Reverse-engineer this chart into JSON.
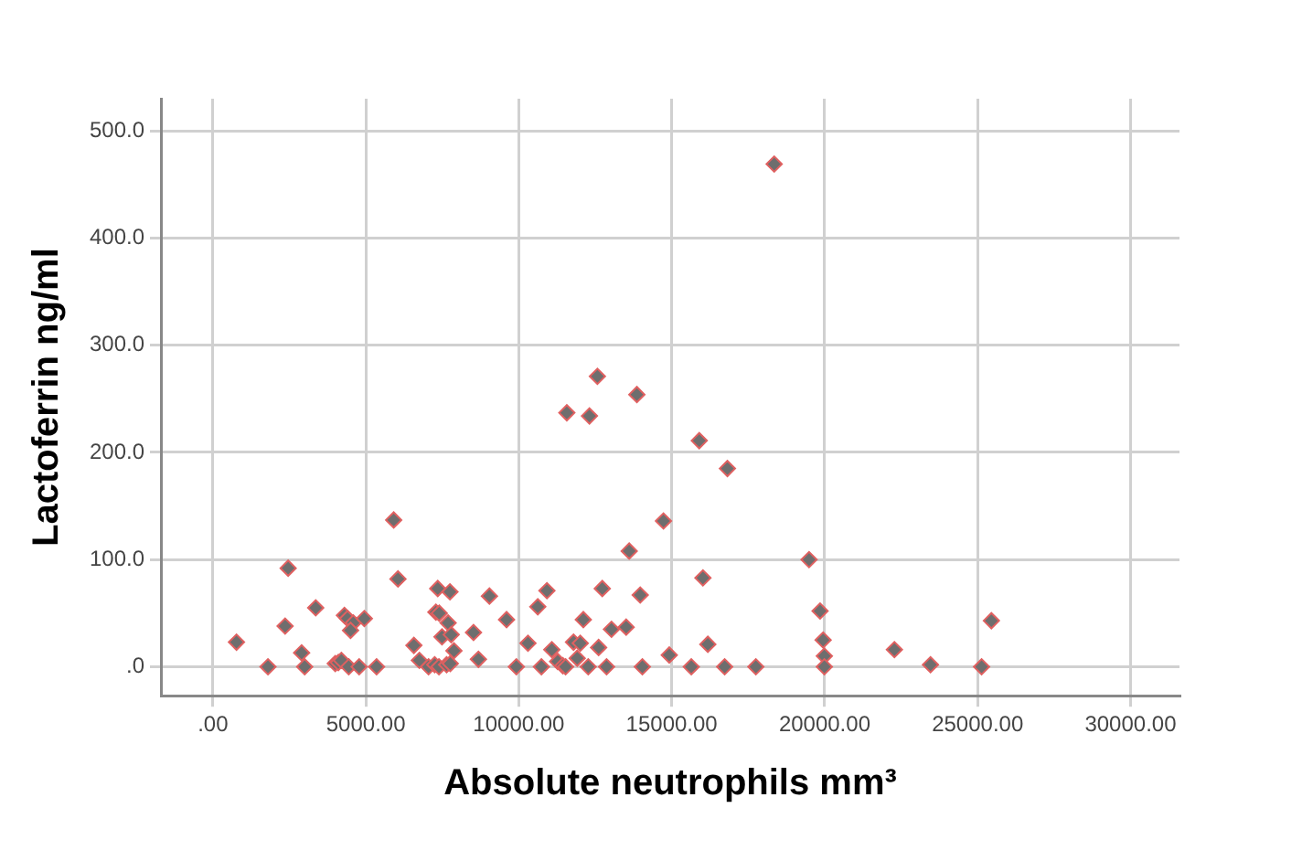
{
  "chart_data": {
    "type": "scatter",
    "xlabel": "Absolute neutrophils mm³",
    "ylabel": "Lactoferrin ng/ml",
    "x": [
      770,
      1800,
      2460,
      2360,
      3360,
      2900,
      3000,
      4300,
      4400,
      4590,
      4500,
      4950,
      4000,
      4100,
      4200,
      4440,
      4780,
      5350,
      5910,
      6050,
      6570,
      6750,
      7050,
      7250,
      7390,
      7640,
      7760,
      7350,
      7750,
      7290,
      7400,
      7690,
      7490,
      7790,
      7880,
      8520,
      8680,
      9040,
      9600,
      9920,
      11570,
      12310,
      12570,
      13860,
      18350,
      15900,
      16820,
      14730,
      13610,
      19490,
      16020,
      10920,
      12730,
      13970,
      10620,
      12110,
      13030,
      13510,
      19850,
      10300,
      11080,
      11790,
      12010,
      12610,
      11270,
      11440,
      11530,
      11910,
      10740,
      12270,
      12870,
      14040,
      14920,
      16180,
      15640,
      16730,
      17750,
      19950,
      19990,
      19990,
      22280,
      23460,
      25130,
      25450
    ],
    "values": [
      23,
      0,
      92,
      38,
      55,
      13,
      0,
      48,
      45,
      41,
      34,
      45,
      3,
      4,
      6,
      0,
      0,
      0,
      137,
      82,
      20,
      6,
      0,
      2,
      0,
      2,
      3,
      73,
      70,
      51,
      50,
      41,
      28,
      30,
      15,
      32,
      7,
      66,
      44,
      0,
      237,
      234,
      271,
      254,
      469,
      211,
      185,
      136,
      108,
      100,
      83,
      71,
      73,
      67,
      56,
      44,
      35,
      37,
      52,
      22,
      16,
      23,
      22,
      18,
      5,
      1,
      0,
      8,
      0,
      0,
      0,
      0,
      11,
      21,
      0,
      0,
      0,
      25,
      10,
      0,
      16,
      2,
      0,
      43
    ],
    "color": "#6e6e6e",
    "marker": "diamond",
    "grid": true,
    "legend": false,
    "xlim": [
      -1700,
      31600
    ],
    "xticks": [
      {
        "value": 0,
        "label": ".00"
      },
      {
        "value": 5000,
        "label": "5000.00"
      },
      {
        "value": 10000,
        "label": "10000.00"
      },
      {
        "value": 15000,
        "label": "15000.00"
      },
      {
        "value": 20000,
        "label": "20000.00"
      },
      {
        "value": 25000,
        "label": "25000.00"
      },
      {
        "value": 30000,
        "label": "30000.00"
      }
    ],
    "ylim": [
      -27,
      530
    ],
    "yticks": [
      {
        "value": 0,
        "label": ".0"
      },
      {
        "value": 100,
        "label": "100.0"
      },
      {
        "value": 200,
        "label": "200.0"
      },
      {
        "value": 300,
        "label": "300.0"
      },
      {
        "value": 400,
        "label": "400.0"
      },
      {
        "value": 500,
        "label": "500.0"
      }
    ]
  }
}
